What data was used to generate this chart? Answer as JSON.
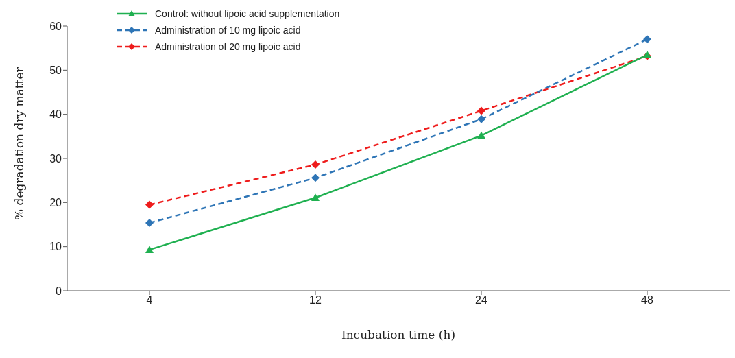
{
  "chart_data": {
    "type": "line",
    "xlabel": "Incubation time (h)",
    "ylabel": "% degradation dry matter",
    "categories": [
      "4",
      "12",
      "24",
      "48"
    ],
    "series": [
      {
        "name": "Control: without lipoic acid supplementation",
        "color": "#1fb050",
        "values": [
          9.3,
          21.1,
          35.2,
          53.5
        ],
        "marker": "triangle",
        "line_style": "solid"
      },
      {
        "name": "Administration of 10  mg lipoic acid",
        "color": "#2e75b6",
        "values": [
          15.4,
          25.6,
          38.9,
          57.0
        ],
        "marker": "diamond",
        "line_style": "dashed"
      },
      {
        "name": "Administration of 20 mg lipoic acid",
        "color": "#ee1c1c",
        "values": [
          19.5,
          28.6,
          40.8,
          53.2
        ],
        "marker": "diamond",
        "line_style": "dashed"
      }
    ],
    "ylim": [
      0,
      60
    ],
    "yticks": [
      0,
      10,
      20,
      30,
      40,
      50,
      60
    ],
    "grid": false,
    "legend": "top left"
  }
}
